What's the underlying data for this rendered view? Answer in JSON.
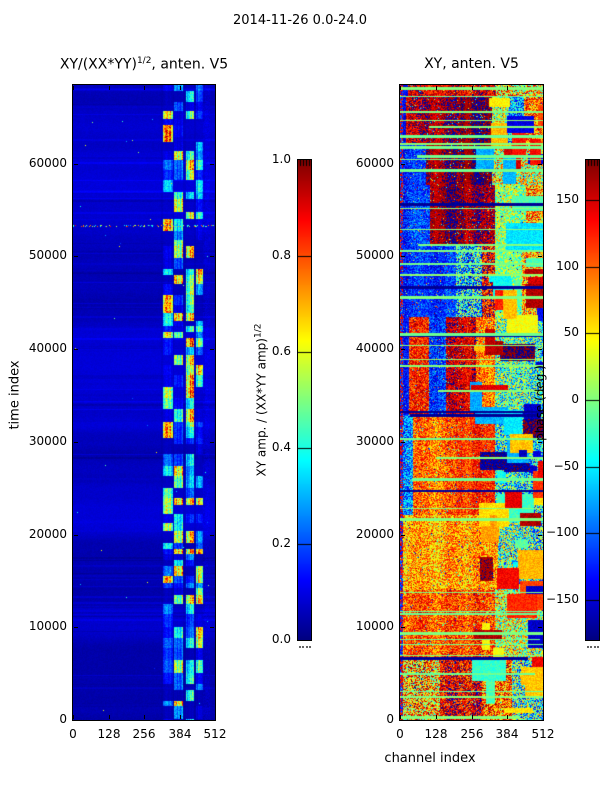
{
  "figure": {
    "title": "2014-11-26 0.0-24.0"
  },
  "chart_data": [
    {
      "type": "heatmap",
      "title": "XY/(XX*YY)^{1/2}, anten. V5",
      "title_parts": {
        "base": "XY/(XX*YY)",
        "sup": "1/2",
        "rest": ", anten. V5"
      },
      "x_axis": {
        "label": "",
        "range": [
          0,
          512
        ],
        "ticks": [
          0,
          128,
          256,
          384,
          512
        ]
      },
      "y_axis": {
        "label": "time index",
        "range": [
          0,
          68500
        ],
        "ticks": [
          0,
          10000,
          20000,
          30000,
          40000,
          50000,
          60000
        ]
      },
      "colormap": "jet",
      "colorbar": {
        "label": "XY amp. / (XX*YY amp)^{1/2}",
        "label_parts": {
          "base": "XY amp. / (XX*YY amp)",
          "sup": "1/2"
        },
        "range": [
          0.0,
          1.0
        ],
        "tick_labels": [
          "1.0",
          "0.8",
          "0.6",
          "0.4",
          "0.2",
          "0.0"
        ],
        "tick_values": [
          1.0,
          0.8,
          0.6,
          0.4,
          0.2,
          0.0
        ]
      },
      "features": [
        "background amplitude near 0 (dark blue) across most channels",
        "bright speckled vertical band of blocky cyan/green/yellow cells around channels 324-470",
        "multicolor dotted horizontal row near time index 53300",
        "faint lighter/darker horizontal banding throughout"
      ]
    },
    {
      "type": "heatmap",
      "title": "XY, anten. V5",
      "x_axis": {
        "label": "channel index",
        "range": [
          0,
          512
        ],
        "ticks": [
          0,
          128,
          256,
          384,
          512
        ]
      },
      "y_axis": {
        "label": "",
        "range": [
          0,
          68500
        ],
        "ticks": [
          0,
          10000,
          20000,
          30000,
          40000,
          50000,
          60000
        ]
      },
      "colormap": "jet",
      "colorbar": {
        "label": "phase (deg.)",
        "range": [
          -180,
          180
        ],
        "tick_values": [
          150,
          100,
          50,
          0,
          -50,
          -100,
          -150
        ]
      },
      "features": [
        "full-range phase noise rendered in jet colormap",
        "pale green horizontal stripes where phase is near 0 deg",
        "dark red patch around channels 100-330 for time 55000-64000",
        "blue (negative phase) region channels 0-200 for time 43000-62000",
        "orange/yellow dominated below time 43000 with cyan/blue blocks at channels above 340"
      ]
    }
  ]
}
